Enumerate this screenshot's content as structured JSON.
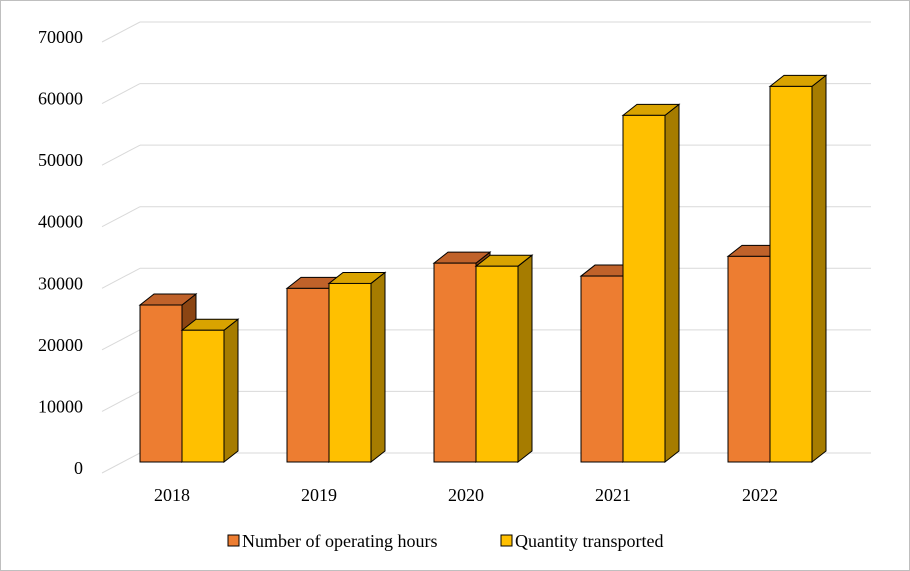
{
  "chart_data": {
    "type": "bar",
    "categories": [
      "2018",
      "2019",
      "2020",
      "2021",
      "2022"
    ],
    "series": [
      {
        "name": "Number of operating hours",
        "values": [
          25500,
          28200,
          32300,
          30200,
          33400
        ]
      },
      {
        "name": "Quantity transported",
        "values": [
          21400,
          29000,
          31800,
          56300,
          61000
        ]
      }
    ],
    "y_ticks": [
      "0",
      "10000",
      "20000",
      "30000",
      "40000",
      "50000",
      "60000",
      "70000"
    ],
    "ylim": [
      0,
      70000
    ],
    "title": "",
    "xlabel": "",
    "ylabel": "",
    "grid": true,
    "legend": "bottom",
    "colors": {
      "series": [
        "#ED7D31",
        "#FFC000"
      ],
      "series_side": [
        "#8B4513",
        "#A67C00"
      ],
      "series_top": [
        "#C0622A",
        "#D9A300"
      ],
      "gridline": "#d9d9d9"
    }
  }
}
